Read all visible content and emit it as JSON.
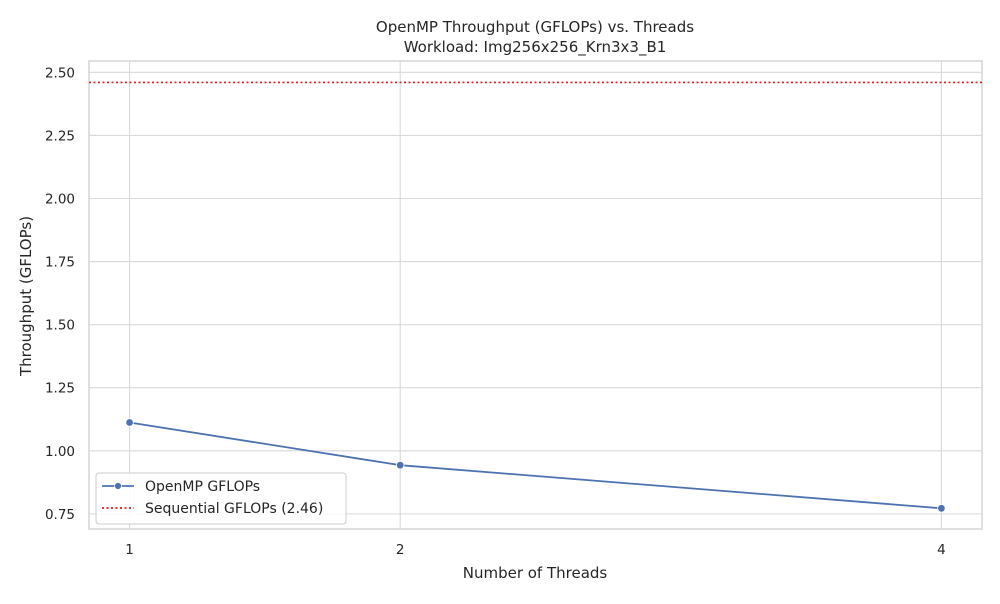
{
  "chart_data": {
    "type": "line",
    "title": "OpenMP Throughput (GFLOPs) vs. Threads",
    "subtitle": "Workload: Img256x256_Krn3x3_B1",
    "xlabel": "Number of Threads",
    "ylabel": "Throughput (GFLOPs)",
    "x": [
      1,
      2,
      4
    ],
    "x_tick_labels": [
      "1",
      "2",
      "4"
    ],
    "xlim": [
      0.85,
      4.15
    ],
    "ylim": [
      0.69,
      2.545
    ],
    "y_ticks": [
      0.75,
      1.0,
      1.25,
      1.5,
      1.75,
      2.0,
      2.25,
      2.5
    ],
    "y_tick_labels": [
      "0.75",
      "1.00",
      "1.25",
      "1.50",
      "1.75",
      "2.00",
      "2.25",
      "2.50"
    ],
    "grid": true,
    "legend_position": "lower-left",
    "series": [
      {
        "name": "OpenMP GFLOPs",
        "values": [
          1.112,
          0.943,
          0.772
        ],
        "color": "#4c72b0",
        "style": "solid",
        "marker": "circle"
      }
    ],
    "reference_lines": [
      {
        "name": "Sequential GFLOPs (2.46)",
        "y": 2.46,
        "color": "#e41a1c",
        "style": "dotted"
      }
    ]
  }
}
